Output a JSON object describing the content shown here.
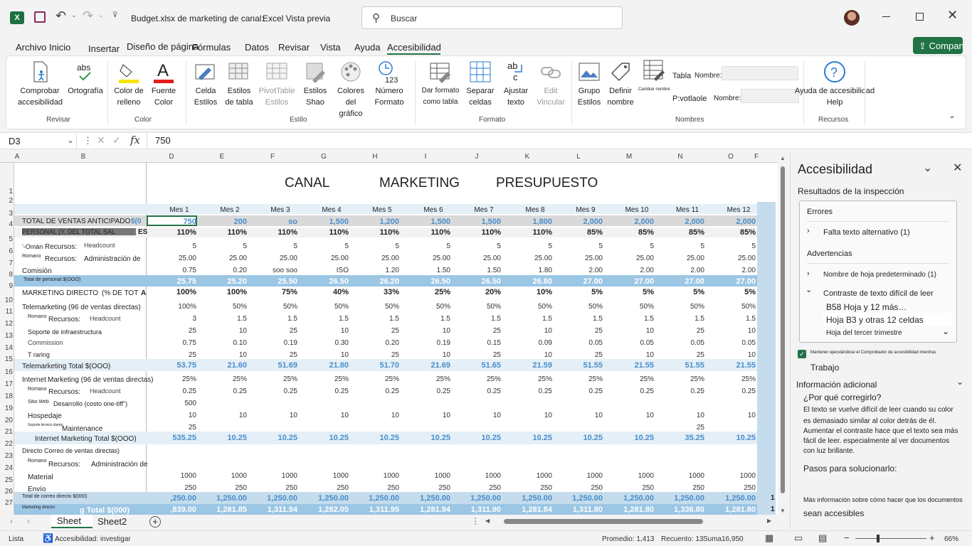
{
  "titlebar": {
    "filename": "Budget.xlsx de marketing de canal:",
    "app": "Excel Vista previa",
    "search_placeholder": "Buscar"
  },
  "menu": [
    "Archivo",
    "Inicio",
    "Insertar",
    "Diseño de página",
    "Fórmulas",
    "Datos",
    "Revisar",
    "Vista",
    "Ayuda",
    "Accesibilidad"
  ],
  "share_label": "Compartir",
  "ribbon": {
    "check_label": "Comprobar accesibilidad",
    "spelling_label": "Ortografía",
    "fill_label": "Color de relleno",
    "font_label": "Fuente Color",
    "cell_label": "Celda Estilos",
    "tablestyle_label": "Estilos de tabla",
    "pivot_label": "PivotTable Estilos",
    "shape_label": "Estilos Shao",
    "chartcolor_label": "Colores del gráfico",
    "number_label": "Número Formato",
    "formatastable_label": "Dar formato como tabla",
    "split_label": "Separar celdas",
    "wrap_label": "Ajustar texto",
    "link_label": "Edit Vincular",
    "group_label": "Grupo Estilos",
    "define_label": "Definir nombre",
    "namemgr_label": "Cambiar nombre",
    "table_label": "Tabla",
    "name_label1": "Nombre:",
    "pivot2_label": "P:votlaole",
    "name_label2": "Nombre:",
    "help_label": "Ayuda de accesibilidad Help",
    "groups": [
      "Revisar",
      "Color",
      "Estilo",
      "Formato",
      "Nombres",
      "Recursos"
    ]
  },
  "formula": {
    "namebox": "D3",
    "value": "750"
  },
  "colors": {
    "accent": "#217346",
    "band_light": "#e4eff7",
    "band_dark": "#9bc6e4",
    "band_mid": "#c5dcec",
    "header_gray": "#d9d9d9",
    "blue_text": "#4a8ecb"
  },
  "columns": [
    "A",
    "B",
    "D",
    "E",
    "F",
    "G",
    "H",
    "I",
    "J",
    "K",
    "L",
    "M",
    "N",
    "O",
    "F"
  ],
  "rows": [
    "1",
    "2",
    "3",
    "4",
    "5",
    "6",
    "7",
    "8",
    "9",
    "10",
    "11",
    "12",
    "13",
    "14",
    "15",
    "16",
    "17",
    "18",
    "19",
    "20",
    "21",
    "22",
    "23",
    "24",
    "25",
    "26",
    "27"
  ],
  "sheet_title": [
    "CANAL",
    "MARKETING",
    "PRESUPUESTO"
  ],
  "months": [
    "Mes 1",
    "Mes 2",
    "Mes 3",
    "Mes 4",
    "Mes 5",
    "Mes 6",
    "Mes 7",
    "Mes 8",
    "Mes 9",
    "Mes 10",
    "Mes 11",
    "Mes 12"
  ],
  "labels": {
    "r3a": "TOTAL DE VENTAS ANTICIPADO",
    "r3b": "$(0",
    "r4a": "PERSONAL (Y. DEL TOTAL SAL",
    "r4b": "ES",
    "r5a": "'-Omán",
    "r5b": "Recursos:",
    "r5c": "Headcount",
    "r6a": "Romano",
    "r6b": "Recursos:",
    "r6c": "Administración de",
    "r7": "Comisión",
    "r8": "Total de personal $(OOO)",
    "r9a": "MARKETING DIRECTO",
    "r9b": "(% DE TOT",
    "r9c": "A",
    "r10": "Telemarketing (96 de ventas directas)",
    "r11a": "Romano",
    "r11b": "Recursos:",
    "r11c": "Headcount",
    "r12": "Soporte de infraestructura",
    "r13": "Commission",
    "r14": "T raring",
    "r15": "Telemarketing Total $(OOO)",
    "r16a": "Internet",
    "r16b": "Marketing (96 de ventas directas)",
    "r17a": "Romano",
    "r17b": "Recursos:",
    "r17c": "Headcount",
    "r18a": "Sitio Web",
    "r18b": "Desarrollo (costo one-tiff\")",
    "r19": "Hospedaje",
    "r20a": "Soporte técnico &amp;",
    "r20b": "Maintenance",
    "r21": "Internet Marketing Total $(OOO)",
    "r22": "Directo Correo de ventas directas)",
    "r23a": "Romano",
    "r23b": "Recursos:",
    "r23c": "Administración de",
    "r24": "Material",
    "r25": "Envío",
    "r26": "Total de correo directo $(000)",
    "r27a": "Marketing directo",
    "r27b": "g Total $(000)"
  },
  "data": {
    "r3": [
      "750",
      "200",
      "so",
      "1,500",
      "1,200",
      "1,500",
      "1,500",
      "1,800",
      "2,000",
      "2,000",
      "2,000",
      "2,000"
    ],
    "r4": [
      "110%",
      "110%",
      "110%",
      "110%",
      "110%",
      "110%",
      "110%",
      "110%",
      "85%",
      "85%",
      "85%",
      "85%"
    ],
    "r5": [
      "5",
      "5",
      "5",
      "5",
      "5",
      "5",
      "5",
      "5",
      "5",
      "5",
      "5",
      "5"
    ],
    "r6": [
      "25.00",
      "25.00",
      "25.00",
      "25.00",
      "25.00",
      "25.00",
      "25.00",
      "25.00",
      "25.00",
      "25.00",
      "25.00",
      "25.00"
    ],
    "r7": [
      "0.75",
      "0.20",
      "soo soo",
      "ISO",
      "1.20",
      "1.50",
      "1.50",
      "1.80",
      "2.00",
      "2.00",
      "2.00",
      "2.00"
    ],
    "r8": [
      "25.75",
      "25.20",
      "25.50",
      "26.50",
      "26.20",
      "26.50",
      "26.50",
      "26.80",
      "27.00",
      "27.00",
      "27.00",
      "27.00"
    ],
    "r9": [
      "100%",
      "100%",
      "75%",
      "40%",
      "33%",
      "25%",
      "20%",
      "10%",
      "5%",
      "5%",
      "5%",
      "5%"
    ],
    "r10": [
      "100%",
      "50%",
      "50%",
      "50%",
      "50%",
      "50%",
      "50%",
      "50%",
      "50%",
      "50%",
      "50%",
      "50%"
    ],
    "r11": [
      "3",
      "1.5",
      "1.5",
      "1.5",
      "1.5",
      "1.5",
      "1.5",
      "1.5",
      "1.5",
      "1.5",
      "1.5",
      "1.5"
    ],
    "r12": [
      "25",
      "10",
      "25",
      "10",
      "25",
      "10",
      "25",
      "10",
      "25",
      "10",
      "25",
      "10"
    ],
    "r13": [
      "0.75",
      "0.10",
      "0.19",
      "0.30",
      "0.20",
      "0.19",
      "0.15",
      "0.09",
      "0.05",
      "0.05",
      "0.05",
      "0.05"
    ],
    "r14": [
      "25",
      "10",
      "25",
      "10",
      "25",
      "10",
      "25",
      "10",
      "25",
      "10",
      "25",
      "10"
    ],
    "r15": [
      "53.75",
      "21.60",
      "51.69",
      "21.80",
      "51.70",
      "21.69",
      "51.65",
      "21.59",
      "51.55",
      "21.55",
      "51.55",
      "21.55"
    ],
    "r16": [
      "25%",
      "25%",
      "25%",
      "25%",
      "25%",
      "25%",
      "25%",
      "25%",
      "25%",
      "25%",
      "25%",
      "25%"
    ],
    "r17": [
      "0.25",
      "0.25",
      "0.25",
      "0.25",
      "0.25",
      "0.25",
      "0.25",
      "0.25",
      "0.25",
      "0.25",
      "0.25",
      "0.25"
    ],
    "r18": [
      "500",
      "",
      "",
      "",
      "",
      "",
      "",
      "",
      "",
      "",
      "",
      ""
    ],
    "r19": [
      "10",
      "10",
      "10",
      "10",
      "10",
      "10",
      "10",
      "10",
      "10",
      "10",
      "10",
      "10"
    ],
    "r20": [
      "25",
      "",
      "",
      "",
      "",
      "",
      "",
      "",
      "",
      "",
      "25",
      ""
    ],
    "r21": [
      "535.25",
      "10.25",
      "10.25",
      "10.25",
      "10.25",
      "10.25",
      "10.25",
      "10.25",
      "10.25",
      "10.25",
      "35.25",
      "10.25"
    ],
    "r24": [
      "1000",
      "1000",
      "1000",
      "1000",
      "1000",
      "1000",
      "1000",
      "1000",
      "1000",
      "1000",
      "1000",
      "1000"
    ],
    "r25": [
      "250",
      "250",
      "250",
      "250",
      "250",
      "250",
      "250",
      "250",
      "250",
      "250",
      "250",
      "250"
    ],
    "r26": [
      ",250.00",
      "1,250.00",
      "1,250.00",
      "1,250.00",
      "1,250.00",
      "1,250.00",
      "1,250.00",
      "1,250.00",
      "1,250.00",
      "1,250.00",
      "1,250.00",
      "1,250.00"
    ],
    "r27": [
      ",839.00",
      "1,281.85",
      "1,311.94",
      "1,282.05",
      "1,311.95",
      "1,281.94",
      "1,311.90",
      "1,281.84",
      "1,311.80",
      "1,281.80",
      "1,336.80",
      "1,281.80"
    ],
    "r26_extra": "1",
    "r27_extra": "1"
  },
  "sheets": [
    "Sheet",
    "Sheet2"
  ],
  "panel": {
    "title": "Accesibilidad",
    "results": "Resultados de la inspección",
    "errors": "Errores",
    "error1": "Falta texto alternativo (1)",
    "warnings": "Advertencias",
    "warn1": "Nombre de hoja predeterminado (1)",
    "warn2": "Contraste de texto difícil de leer",
    "sub1": "B58 Hoja y 12 más…",
    "sub2": "Hoja B3 y otras 12 celdas",
    "sub3": "Hoja del tercer trimestre",
    "keep_running": "Mantener ejecutándose el Comprobador de accesibilidad mientras",
    "work": "Trabajo",
    "additional": "Información adicional",
    "why": "¿Por qué corregirlo?",
    "why_text1": "El texto se vuelve difícil de leer cuando su color",
    "why_text2": "es demasiado similar al color detrás de él.",
    "why_text3": "Aumentar el contraste hace que el texto sea más",
    "why_text4": "fácil de leer. especialmente al ver documentos",
    "why_text5": "con luz brillante.",
    "steps": "Pasos para solucionarlo:",
    "more1": "Más información sobre cómo hacer que los documentos",
    "more2": "sean accesibles"
  },
  "status": {
    "mode": "Lista",
    "accessibility": "Accesibilidad: investigar",
    "avg": "Promedio: 1,413",
    "count": "Recuento: 13",
    "sum_label": "Suma",
    "sum": "16,950",
    "zoom": "66%"
  }
}
